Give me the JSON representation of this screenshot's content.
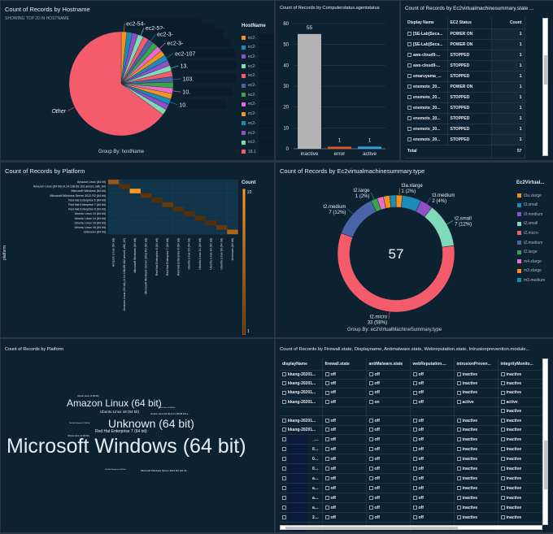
{
  "hostname_pie": {
    "title": "Count of Records by Hostname",
    "subtitle": "SHOWING TOP 20 IN HOSTNAME",
    "group_by": "Group By: hostName",
    "legend_title": "HostName",
    "slices": [
      {
        "label": "ec2-54-",
        "value": 1
      },
      {
        "label": "",
        "value": 1
      },
      {
        "label": "",
        "value": 1
      },
      {
        "label": "ec2-52-",
        "value": 1
      },
      {
        "label": "",
        "value": 1
      },
      {
        "label": "ec2-3-",
        "value": 1
      },
      {
        "label": "",
        "value": 1
      },
      {
        "label": "ec2-3-",
        "value": 1
      },
      {
        "label": "",
        "value": 1
      },
      {
        "label": "ec2-107",
        "value": 1
      },
      {
        "label": "",
        "value": 1
      },
      {
        "label": "13.",
        "value": 1
      },
      {
        "label": "",
        "value": 1
      },
      {
        "label": "103.",
        "value": 1
      },
      {
        "label": "",
        "value": 1
      },
      {
        "label": "10.",
        "value": 1
      },
      {
        "label": "",
        "value": 1
      },
      {
        "label": "10.",
        "value": 1
      },
      {
        "label": "",
        "value": 1
      },
      {
        "label": "",
        "value": 1
      },
      {
        "label": "Other",
        "value": 37
      }
    ],
    "legend": [
      "ec2-",
      "ec2-",
      "ec2-",
      "ec2-",
      "ec2-",
      "ec2-",
      "ec2-",
      "ec2-",
      "ec2-",
      "ec2-",
      "ec2-",
      "ec2-",
      "18.1"
    ],
    "colors": [
      "#f7911e",
      "#1d8bb8",
      "#8e50c4",
      "#7fd9bb",
      "#f45c6b",
      "#4a64a8",
      "#3aa547",
      "#e86bd0"
    ],
    "other_color": "#f45c6b"
  },
  "agent_bar": {
    "title": "Count of Records by Computerstatus.agentstatus",
    "chart_data": {
      "type": "bar",
      "categories": [
        "inactive",
        "error",
        "active"
      ],
      "values": [
        55,
        1,
        1
      ],
      "colors": [
        "#b3b3b3",
        "#e8501e",
        "#2aa4e0"
      ],
      "ylim": [
        0,
        60
      ],
      "yticks": [
        0,
        10,
        20,
        30,
        40,
        50,
        60
      ]
    }
  },
  "state_table": {
    "title": "Count of Records by Ec2virtualmachinesummary.state ...",
    "headers": [
      "Display Name",
      "EC2 Status",
      "Count"
    ],
    "rows": [
      [
        "[SE-Lab]Seca...",
        "POWER ON",
        "1"
      ],
      [
        "[SE-Lab]Seca...",
        "POWER ON",
        "1"
      ],
      [
        "aws-cloud9-...",
        "STOPPED",
        "1"
      ],
      [
        "aws-cloud9-...",
        "STOPPED",
        "1"
      ],
      [
        "emaruyama_...",
        "STOPPED",
        "1"
      ],
      [
        "enemoto_20...",
        "POWER ON",
        "1"
      ],
      [
        "enemoto_20...",
        "STOPPED",
        "1"
      ],
      [
        "enemoto_20...",
        "STOPPED",
        "1"
      ],
      [
        "enemoto_20...",
        "STOPPED",
        "1"
      ],
      [
        "enemoto_20...",
        "STOPPED",
        "1"
      ],
      [
        "enemoto_20...",
        "STOPPED",
        "1"
      ]
    ],
    "total_label": "Total",
    "total": "57"
  },
  "platform_heatmap": {
    "title": "Count of Records by Platform",
    "y_label": "platform",
    "legend_title": "Count",
    "legend_max": "22",
    "legend_min": "1",
    "chart_data": {
      "type": "heatmap",
      "categories": [
        "Amazon Linux (64 bit)",
        "Amazon Linux (64 bit) (4.14.138-89.102.amzn1.x86_64)",
        "Microsoft Windows (64 bit)",
        "Microsoft Windows Server 2012 R2 (64 bit)",
        "Red Hat Enterprise 6 (64 bit)",
        "Red Hat Enterprise 7 (64 bit)",
        "Red Hat Enterprise 8 (64 bit)",
        "Ubuntu Linux 10 (64 bit)",
        "Ubuntu Linux 14 (64 bit)",
        "Ubuntu Linux 16 (64 bit)",
        "Ubuntu Linux 18 (64 bit)",
        "Unknown (64 bit)"
      ],
      "values": [
        9,
        1,
        22,
        2,
        1,
        3,
        1,
        1,
        1,
        1,
        3,
        12
      ],
      "range": [
        1,
        22
      ]
    }
  },
  "type_donut": {
    "title": "Count of Records by Ec2virtualmachinesummary.type",
    "center_value": "57",
    "group_by": "Group By: ec2VirtualMachineSummary.type",
    "legend_title": "Ec2Virtual...",
    "chart_data": {
      "type": "pie",
      "slices": [
        {
          "label": "t3a.xlarge",
          "value": 1,
          "pct": "2%",
          "color": "#f7911e",
          "show": true
        },
        {
          "label": "t3.small",
          "value": 3,
          "pct": "5%",
          "color": "#1d8bb8",
          "show": false
        },
        {
          "label": "t3.medium",
          "value": 2,
          "pct": "4%",
          "color": "#8e50c4",
          "show": true
        },
        {
          "label": "t2.small",
          "value": 7,
          "pct": "12%",
          "color": "#7fd9bb",
          "show": true
        },
        {
          "label": "t2.micro",
          "value": 33,
          "pct": "58%",
          "color": "#f45c6b",
          "show": true
        },
        {
          "label": "t2.medium",
          "value": 7,
          "pct": "12%",
          "color": "#4a64a8",
          "show": true
        },
        {
          "label": "t2.large",
          "value": 1,
          "pct": "2%",
          "color": "#3aa547",
          "show": true
        },
        {
          "label": "m4.xlarge",
          "value": 1,
          "pct": "2%",
          "color": "#e86bd0",
          "show": false
        },
        {
          "label": "m3.xlarge",
          "value": 1,
          "pct": "2%",
          "color": "#f7911e",
          "show": false
        },
        {
          "label": "m3.medium",
          "value": 1,
          "pct": "2%",
          "color": "#1d8bb8",
          "show": false
        }
      ]
    }
  },
  "platform_cloud": {
    "title": "Count of Records by Platform",
    "words": [
      "Ubuntu Linux 10 (64 bit)",
      "Amazon Linux (64 bit)",
      "Ubuntu Linux 16 (64 bit)",
      "Ubuntu Linux 18 (64 bit)",
      "Amazon Linux (64 bit) (4.14.138-89.102.a...",
      "Red Hat Enterprise 6 (64 bit)",
      "Unknown (64 bit)",
      "Red Hat Enterprise 7 (64 bit)",
      "Ubuntu Linux 14 (64 bit)",
      "Microsoft Windows (64 bit)",
      "Red Hat Enterprise 8 (64 bit)",
      "Microsoft Windows Server 2012 R2 (64 bit..."
    ]
  },
  "security_table": {
    "title": "Count of Records by Firewall.state, Displayname, Antimalware.state, Webreputation.state, Intrusionprevention.module...",
    "headers": [
      "displayName",
      "firewall.state",
      "antiMalware.state",
      "webReputation....",
      "intrusionPreven...",
      "integrityMonito..."
    ],
    "rows": [
      [
        "kkang-20201...",
        "off",
        "off",
        "off",
        "inactive",
        "inactive"
      ],
      [
        "kkang-20201...",
        "off",
        "off",
        "off",
        "inactive",
        "inactive"
      ],
      [
        "kkang-20201...",
        "off",
        "off",
        "off",
        "inactive",
        "inactive"
      ],
      [
        "kkang-20201...",
        "off",
        "on",
        "off",
        "active",
        "active"
      ],
      [
        "",
        "",
        "",
        "",
        "",
        "inactive"
      ],
      [
        "kkang-20201...",
        "off",
        "off",
        "off",
        "inactive",
        "inactive"
      ],
      [
        "kkang-20201...",
        "off",
        "off",
        "off",
        "inactive",
        "inactive"
      ],
      [
        "_2...",
        "off",
        "off",
        "off",
        "inactive",
        "inactive"
      ],
      [
        "019...",
        "off",
        "off",
        "off",
        "inactive",
        "inactive"
      ],
      [
        "019...",
        "off",
        "off",
        "off",
        "inactive",
        "inactive"
      ],
      [
        "019...",
        "off",
        "off",
        "off",
        "inactive",
        "inactive"
      ],
      [
        "a_...",
        "off",
        "off",
        "off",
        "inactive",
        "inactive"
      ],
      [
        "a_...",
        "off",
        "off",
        "off",
        "inactive",
        "inactive"
      ],
      [
        "a_...",
        "off",
        "off",
        "off",
        "inactive",
        "inactive"
      ],
      [
        "a_...",
        "off",
        "off",
        "off",
        "inactive",
        "inactive"
      ],
      [
        "20...",
        "off",
        "off",
        "off",
        "inactive",
        "inactive"
      ],
      [
        "20...",
        "off",
        "off",
        "off",
        "inactive",
        "inactive"
      ]
    ]
  }
}
